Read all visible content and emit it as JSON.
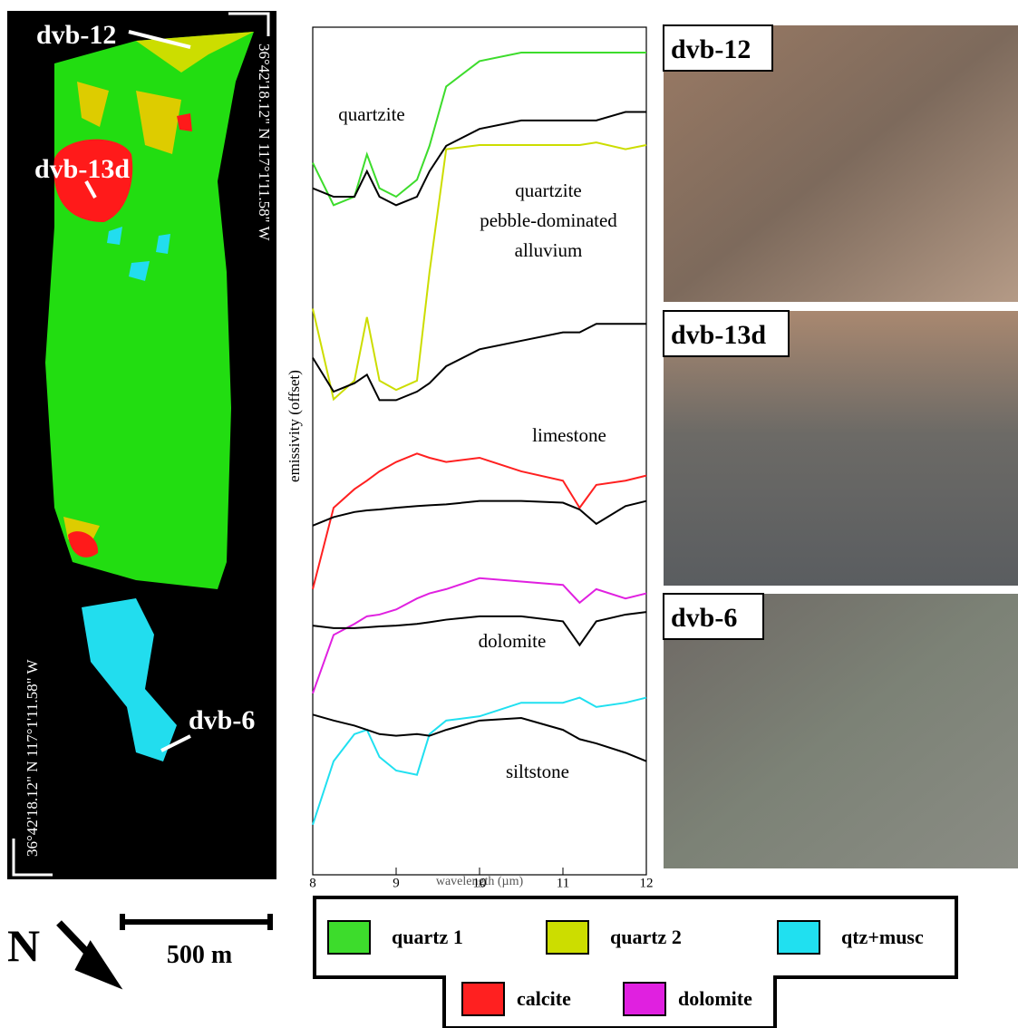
{
  "chart_data": {
    "type": "line",
    "y_label": "emissivity (offset)",
    "x_label": "wavelength (µm)",
    "x": [
      8,
      8.25,
      8.5,
      8.65,
      8.8,
      9,
      9.25,
      9.4,
      9.6,
      10,
      10.5,
      11,
      11.2,
      11.4,
      11.75,
      12
    ],
    "xlim": [
      8,
      12
    ],
    "xticks": [
      8,
      9,
      10,
      11,
      12
    ],
    "ylim": [
      0,
      1
    ],
    "series": [
      {
        "color": "#3ddc2c",
        "values": [
          0.84,
          0.79,
          0.8,
          0.85,
          0.81,
          0.8,
          0.82,
          0.86,
          0.93,
          0.96,
          0.97,
          0.97,
          0.97,
          0.97,
          0.97,
          0.97
        ]
      },
      {
        "color": "#000000",
        "values": [
          0.81,
          0.8,
          0.8,
          0.83,
          0.8,
          0.79,
          0.8,
          0.83,
          0.86,
          0.88,
          0.89,
          0.89,
          0.89,
          0.89,
          0.9,
          0.9
        ]
      },
      {
        "color": "#ccdd00",
        "values": [
          0.668,
          0.561,
          0.583,
          0.658,
          0.583,
          0.572,
          0.583,
          0.711,
          0.856,
          0.861,
          0.861,
          0.861,
          0.861,
          0.864,
          0.856,
          0.861
        ]
      },
      {
        "color": "#000000",
        "values": [
          0.61,
          0.57,
          0.58,
          0.59,
          0.56,
          0.56,
          0.57,
          0.58,
          0.6,
          0.62,
          0.63,
          0.64,
          0.64,
          0.65,
          0.65,
          0.65
        ]
      },
      {
        "color": "#ff2020",
        "values": [
          0.337,
          0.433,
          0.455,
          0.465,
          0.476,
          0.487,
          0.497,
          0.492,
          0.487,
          0.492,
          0.476,
          0.465,
          0.433,
          0.46,
          0.465,
          0.471
        ]
      },
      {
        "color": "#000000",
        "values": [
          0.412,
          0.422,
          0.428,
          0.43,
          0.431,
          0.433,
          0.435,
          0.436,
          0.437,
          0.441,
          0.441,
          0.439,
          0.431,
          0.414,
          0.435,
          0.441
        ]
      },
      {
        "color": "#e020e0",
        "values": [
          0.214,
          0.283,
          0.296,
          0.305,
          0.307,
          0.313,
          0.326,
          0.332,
          0.337,
          0.35,
          0.346,
          0.342,
          0.321,
          0.337,
          0.326,
          0.332
        ]
      },
      {
        "color": "#000000",
        "values": [
          0.294,
          0.291,
          0.291,
          0.292,
          0.293,
          0.294,
          0.296,
          0.298,
          0.301,
          0.305,
          0.305,
          0.299,
          0.271,
          0.299,
          0.307,
          0.31
        ]
      },
      {
        "color": "#20e0f0",
        "values": [
          0.059,
          0.134,
          0.166,
          0.171,
          0.139,
          0.123,
          0.118,
          0.166,
          0.182,
          0.187,
          0.203,
          0.203,
          0.209,
          0.198,
          0.203,
          0.209
        ]
      },
      {
        "color": "#000000",
        "values": [
          0.189,
          0.182,
          0.176,
          0.171,
          0.166,
          0.164,
          0.166,
          0.164,
          0.171,
          0.182,
          0.185,
          0.171,
          0.16,
          0.155,
          0.144,
          0.134
        ]
      }
    ],
    "annotations": [
      "quartzite",
      "quartzite",
      "pebble-dominated",
      "alluvium",
      "limestone",
      "dolomite",
      "siltstone"
    ]
  },
  "map": {
    "sites": [
      "dvb-12",
      "dvb-13d",
      "dvb-6"
    ],
    "coord_right": "36°42'18.12\" N    117°1'11.58\" W",
    "coord_left": "36°42'18.12\" N    117°1'11.58\" W",
    "north": "N",
    "scale": "500 m"
  },
  "photos": [
    "dvb-12",
    "dvb-13d",
    "dvb-6"
  ],
  "legend": [
    {
      "label": "quartz 1",
      "color": "#3ddc2c"
    },
    {
      "label": "quartz 2",
      "color": "#ccdd00"
    },
    {
      "label": "qtz+musc",
      "color": "#20e0f0"
    },
    {
      "label": "calcite",
      "color": "#ff2020"
    },
    {
      "label": "dolomite",
      "color": "#e020e0"
    }
  ]
}
